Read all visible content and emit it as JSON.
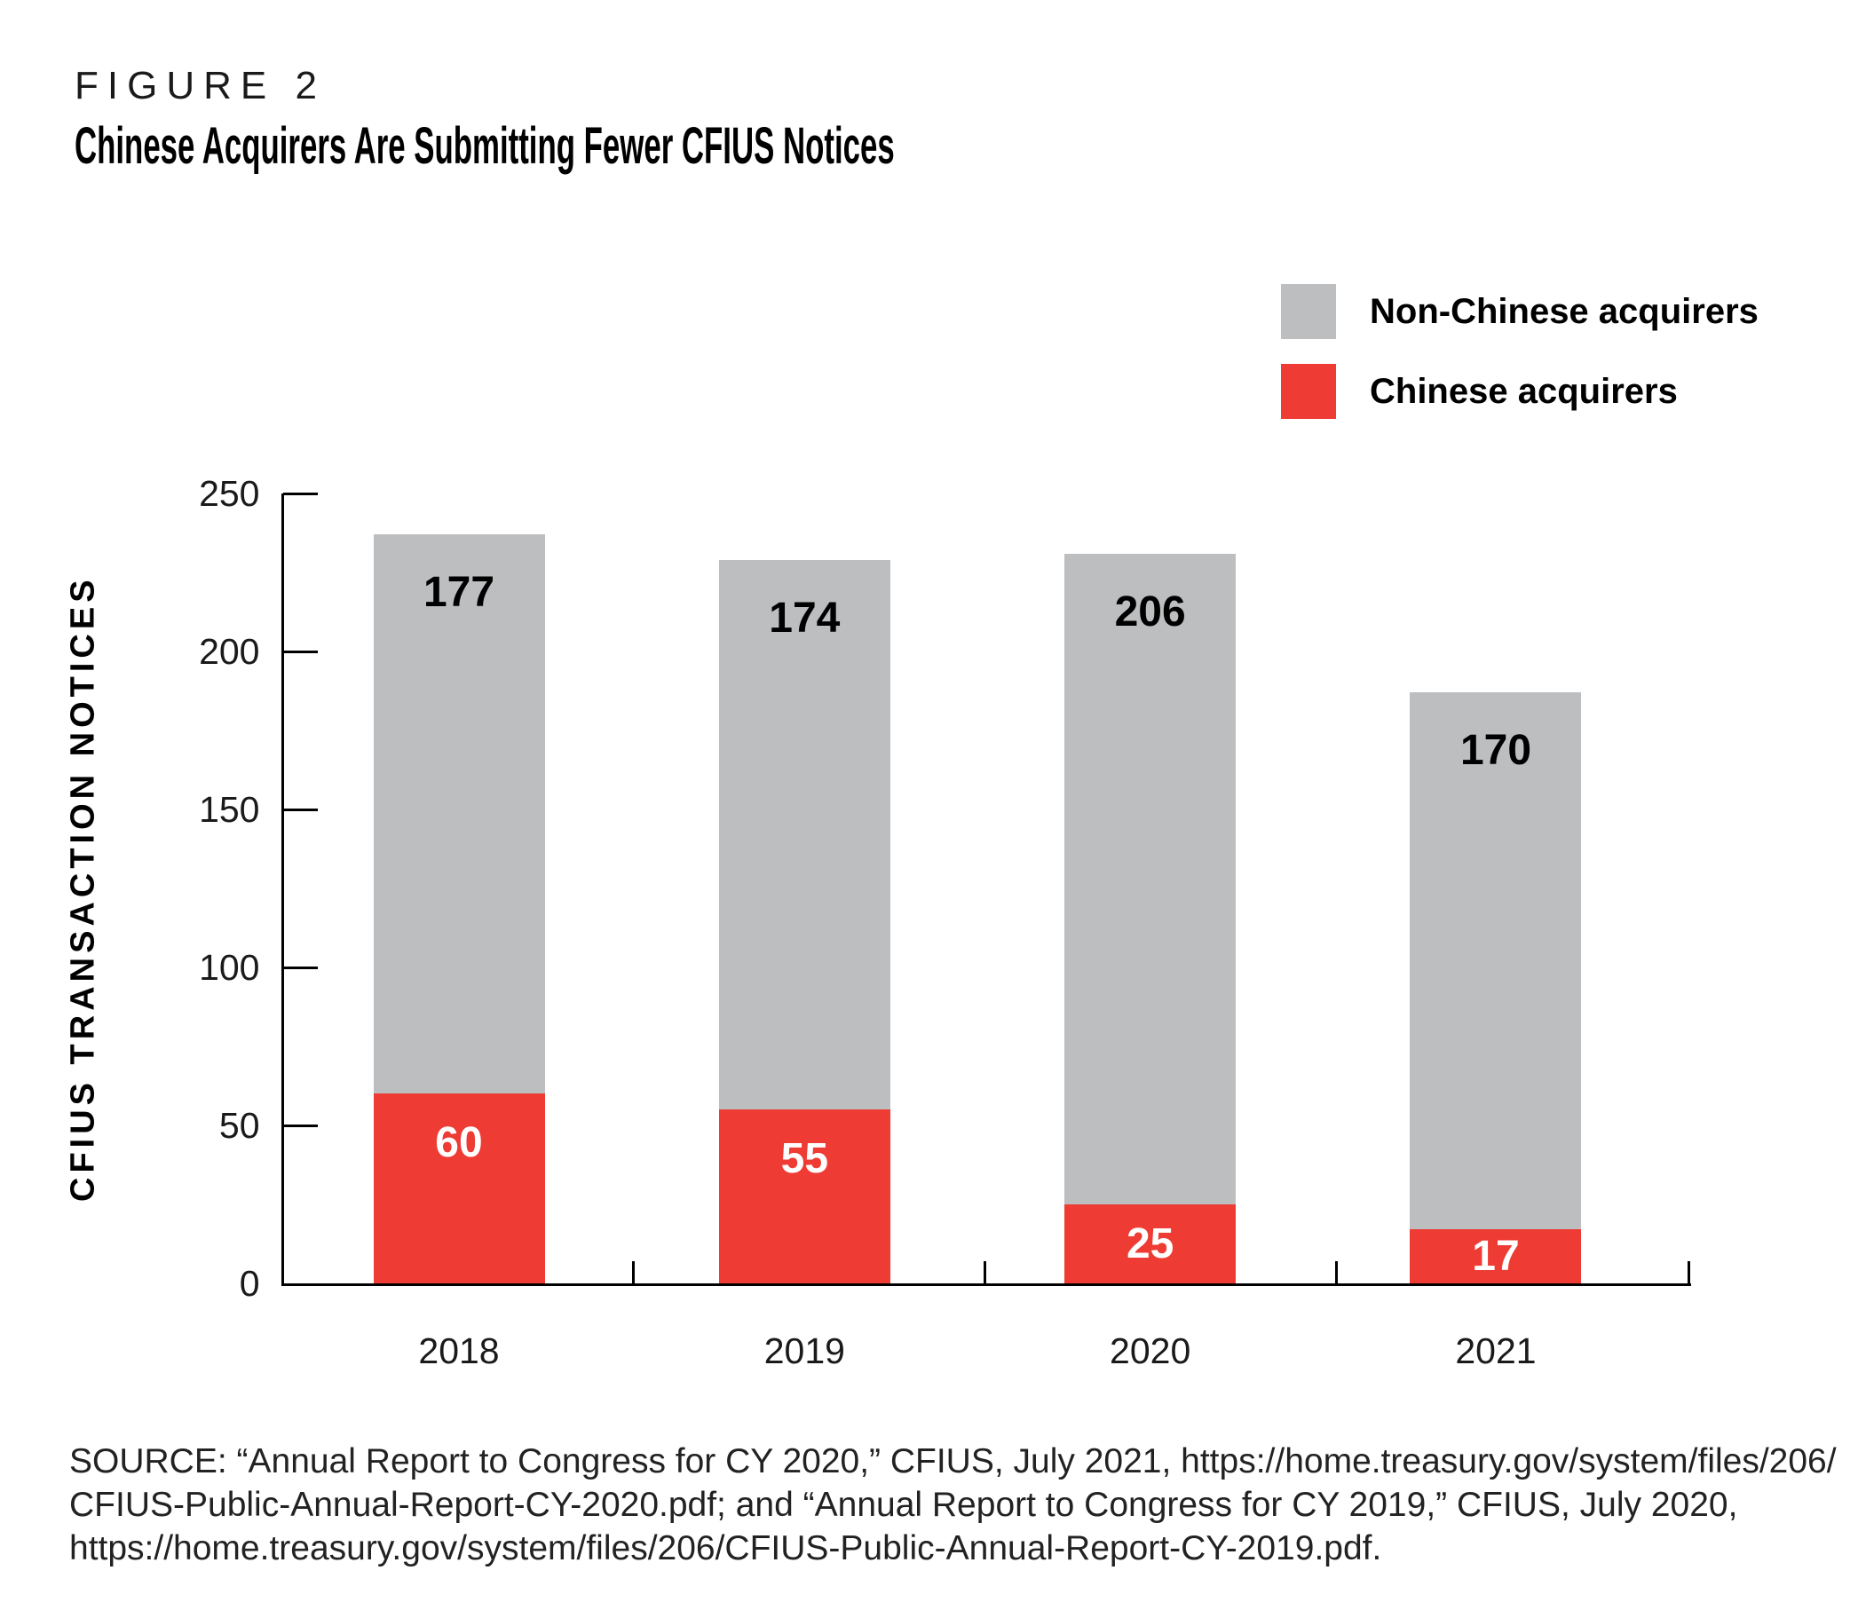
{
  "figure_label": "FIGURE 2",
  "title": "Chinese Acquirers Are Submitting Fewer CFIUS Notices",
  "legend": [
    {
      "label": "Non-Chinese acquirers",
      "color": "#bcbec0"
    },
    {
      "label": "Chinese acquirers",
      "color": "#ee3b34"
    }
  ],
  "chart_data": {
    "type": "bar",
    "stacked": true,
    "title": "Chinese Acquirers Are Submitting Fewer CFIUS Notices",
    "categories": [
      "2018",
      "2019",
      "2020",
      "2021"
    ],
    "series": [
      {
        "name": "Chinese acquirers",
        "color": "#ee3b34",
        "label_color": "#ffffff",
        "values": [
          60,
          55,
          25,
          17
        ]
      },
      {
        "name": "Non-Chinese acquirers",
        "color": "#bcbec0",
        "label_color": "#000000",
        "values": [
          177,
          174,
          206,
          170
        ]
      }
    ],
    "totals": [
      237,
      229,
      231,
      187
    ],
    "xlabel": "",
    "ylabel": "CFIUS TRANSACTION NOTICES",
    "ylim": [
      0,
      250
    ],
    "yticks": [
      0,
      50,
      100,
      150,
      200,
      250
    ],
    "grid": false,
    "legend_position": "top-right"
  },
  "source": {
    "lines": [
      "SOURCE: “Annual Report to Congress for CY 2020,” CFIUS, July 2021, https://home.treasury.gov/system/files/206/",
      "CFIUS-Public-Annual-Report-CY-2020.pdf; and “Annual Report to Congress for CY 2019,” CFIUS, July 2020,",
      "https://home.treasury.gov/system/files/206/CFIUS-Public-Annual-Report-CY-2019.pdf."
    ]
  }
}
